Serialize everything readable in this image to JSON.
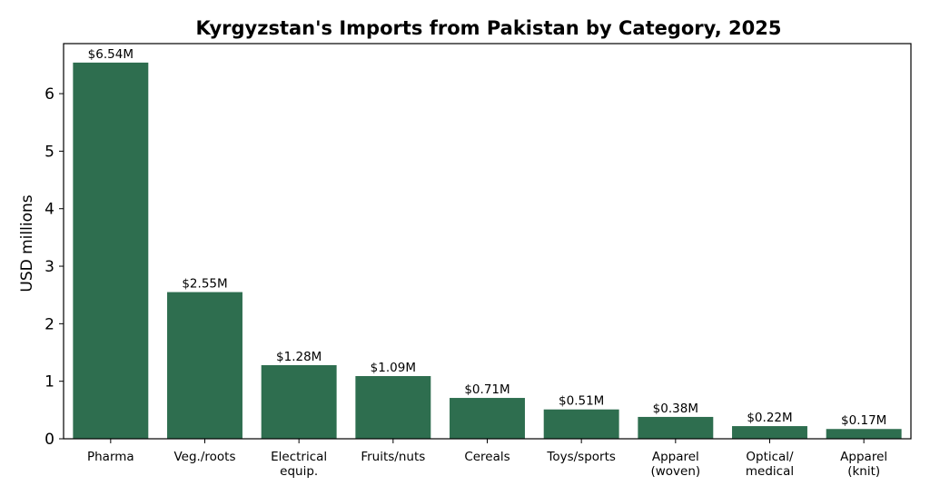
{
  "chart_data": {
    "type": "bar",
    "title": "Kyrgyzstan's Imports from Pakistan by Category, 2025",
    "xlabel": "",
    "ylabel": "USD millions",
    "ylim": [
      0,
      6.87
    ],
    "yticks": [
      0,
      1,
      2,
      3,
      4,
      5,
      6
    ],
    "grid": false,
    "bar_color": "#2e6e4f",
    "categories": [
      [
        "Pharma"
      ],
      [
        "Veg./roots"
      ],
      [
        "Electrical",
        "equip."
      ],
      [
        "Fruits/nuts"
      ],
      [
        "Cereals"
      ],
      [
        "Toys/sports"
      ],
      [
        "Apparel",
        "(woven)"
      ],
      [
        "Optical/",
        "medical"
      ],
      [
        "Apparel",
        "(knit)"
      ]
    ],
    "values": [
      6.54,
      2.55,
      1.28,
      1.09,
      0.71,
      0.51,
      0.38,
      0.22,
      0.17
    ],
    "data_labels": [
      "$6.54M",
      "$2.55M",
      "$1.28M",
      "$1.09M",
      "$0.71M",
      "$0.51M",
      "$0.38M",
      "$0.22M",
      "$0.17M"
    ]
  }
}
